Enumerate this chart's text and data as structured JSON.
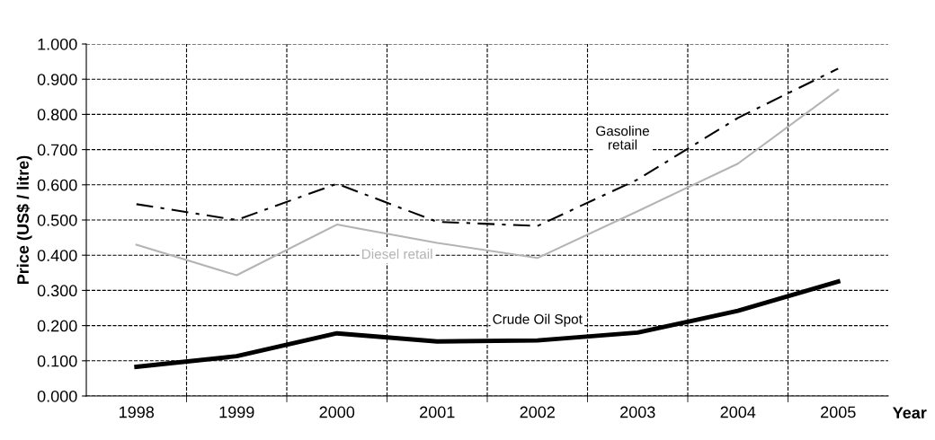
{
  "chart_data": {
    "type": "line",
    "xlabel": "Year",
    "ylabel": "Price (US$ / litre)",
    "categories": [
      "1998",
      "1999",
      "2000",
      "2001",
      "2002",
      "2003",
      "2004",
      "2005"
    ],
    "series": [
      {
        "name": "Gasoline retail",
        "color": "#000000",
        "line_style": "dashed",
        "values": [
          0.545,
          0.5,
          0.603,
          0.495,
          0.483,
          0.615,
          0.79,
          0.93
        ]
      },
      {
        "name": "Diesel retail",
        "color": "#b4b4b4",
        "line_style": "solid",
        "values": [
          0.43,
          0.343,
          0.487,
          0.435,
          0.392,
          0.525,
          0.66,
          0.87
        ]
      },
      {
        "name": "Crude Oil Spot",
        "color": "#000000",
        "line_style": "solid",
        "values": [
          0.083,
          0.113,
          0.178,
          0.155,
          0.158,
          0.18,
          0.242,
          0.325
        ]
      }
    ],
    "ylim": [
      0,
      1
    ],
    "yticks": [
      {
        "value": 0,
        "label": "0.000"
      },
      {
        "value": 0.1,
        "label": "0.100"
      },
      {
        "value": 0.2,
        "label": "0.200"
      },
      {
        "value": 0.3,
        "label": "0.300"
      },
      {
        "value": 0.4,
        "label": "0.400"
      },
      {
        "value": 0.5,
        "label": "0.500"
      },
      {
        "value": 0.6,
        "label": "0.600"
      },
      {
        "value": 0.7,
        "label": "0.700"
      },
      {
        "value": 0.8,
        "label": "0.800"
      },
      {
        "value": 0.9,
        "label": "0.900"
      },
      {
        "value": 1,
        "label": "1.000"
      }
    ],
    "grid": true,
    "marker": "none",
    "legend": false
  }
}
